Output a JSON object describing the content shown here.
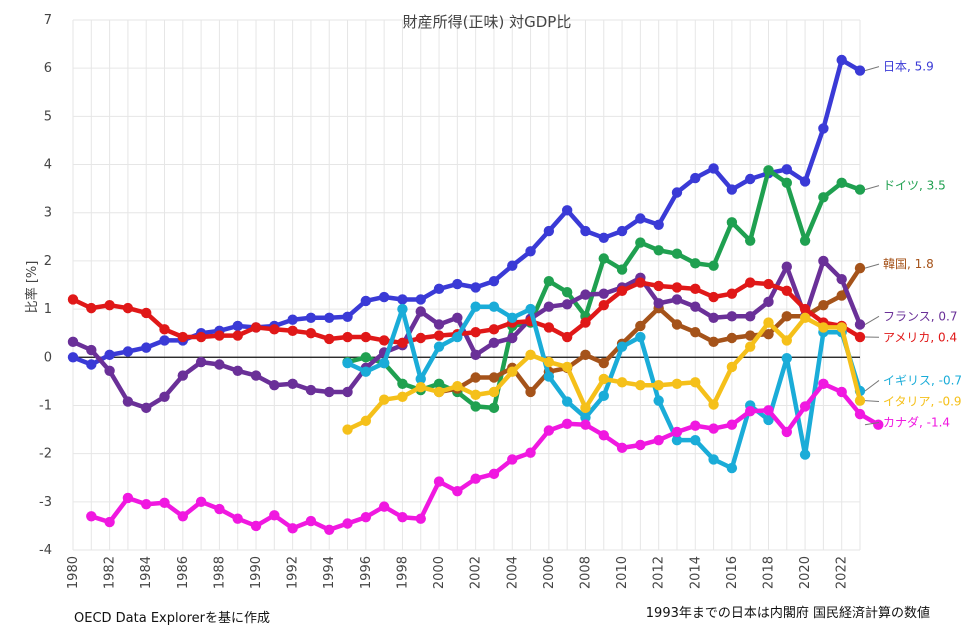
{
  "chart_data": {
    "type": "line",
    "title": "財産所得(正味) 対GDP比",
    "ylabel": "比率 [%]",
    "xlabel": "",
    "ylim": [
      -4,
      7
    ],
    "yticks": [
      -4,
      -3,
      -2,
      -1,
      0,
      1,
      2,
      3,
      4,
      5,
      6,
      7
    ],
    "xlim": [
      1980,
      2023
    ],
    "xticks": [
      1980,
      1982,
      1984,
      1986,
      1988,
      1990,
      1992,
      1994,
      1996,
      1998,
      2000,
      2002,
      2004,
      2006,
      2008,
      2010,
      2012,
      2014,
      2016,
      2018,
      2020,
      2022
    ],
    "grid": true,
    "source_note": "OECD Data Explorerを基に作成",
    "footnote": "1993年までの日本は内閣府 国民経済計算の数値",
    "series": [
      {
        "name": "日本",
        "legend_label": "日本, 5.9",
        "color": "#3a3ad6",
        "start": 1980,
        "values": [
          0.0,
          -0.15,
          0.05,
          0.12,
          0.2,
          0.35,
          0.35,
          0.5,
          0.55,
          0.65,
          0.62,
          0.65,
          0.78,
          0.82,
          0.82,
          0.84,
          1.17,
          1.25,
          1.2,
          1.2,
          1.42,
          1.52,
          1.45,
          1.58,
          1.9,
          2.2,
          2.62,
          3.05,
          2.62,
          2.48,
          2.62,
          2.88,
          2.75,
          3.42,
          3.72,
          3.92,
          3.48,
          3.7,
          3.82,
          3.9,
          3.65,
          4.75,
          6.17,
          5.95
        ]
      },
      {
        "name": "ドイツ",
        "legend_label": "ドイツ, 3.5",
        "color": "#1fa050",
        "start": 1995,
        "values": [
          -0.1,
          0.0,
          -0.12,
          -0.55,
          -0.68,
          -0.55,
          -0.72,
          -1.02,
          -1.05,
          0.65,
          0.72,
          1.58,
          1.35,
          0.85,
          2.05,
          1.82,
          2.38,
          2.22,
          2.15,
          1.95,
          1.9,
          2.8,
          2.42,
          3.88,
          3.62,
          2.42,
          3.32,
          3.62,
          3.48
        ]
      },
      {
        "name": "韓国",
        "legend_label": "韓国, 1.8",
        "color": "#a5531a",
        "start": 2000,
        "values": [
          -0.72,
          -0.65,
          -0.42,
          -0.42,
          -0.22,
          -0.72,
          -0.3,
          -0.22,
          0.05,
          -0.12,
          0.28,
          0.65,
          1.02,
          0.68,
          0.52,
          0.32,
          0.4,
          0.45,
          0.48,
          0.85,
          0.85,
          1.08,
          1.28,
          1.85
        ]
      },
      {
        "name": "フランス",
        "legend_label": "フランス, 0.7",
        "color": "#6a3098",
        "start": 1980,
        "values": [
          0.32,
          0.15,
          -0.28,
          -0.92,
          -1.05,
          -0.82,
          -0.38,
          -0.1,
          -0.15,
          -0.28,
          -0.38,
          -0.58,
          -0.55,
          -0.68,
          -0.72,
          -0.72,
          -0.22,
          0.1,
          0.25,
          0.95,
          0.68,
          0.82,
          0.05,
          0.3,
          0.4,
          0.8,
          1.05,
          1.1,
          1.3,
          1.32,
          1.45,
          1.65,
          1.12,
          1.2,
          1.05,
          0.82,
          0.85,
          0.85,
          1.15,
          1.88,
          0.85,
          2.0,
          1.62,
          0.68
        ]
      },
      {
        "name": "アメリカ",
        "legend_label": "アメリカ, 0.4",
        "color": "#e01818",
        "start": 1980,
        "values": [
          1.2,
          1.02,
          1.08,
          1.02,
          0.92,
          0.58,
          0.42,
          0.42,
          0.45,
          0.45,
          0.62,
          0.58,
          0.55,
          0.5,
          0.38,
          0.42,
          0.42,
          0.35,
          0.3,
          0.4,
          0.45,
          0.48,
          0.52,
          0.58,
          0.72,
          0.75,
          0.62,
          0.42,
          0.72,
          1.08,
          1.38,
          1.55,
          1.48,
          1.45,
          1.42,
          1.25,
          1.32,
          1.55,
          1.52,
          1.38,
          1.0,
          0.72,
          0.65,
          0.42
        ]
      },
      {
        "name": "イギリス",
        "legend_label": "イギリス, -0.7",
        "color": "#1aacd8",
        "start": 1995,
        "values": [
          -0.12,
          -0.3,
          -0.12,
          1.0,
          -0.45,
          0.22,
          0.42,
          1.05,
          1.05,
          0.82,
          1.0,
          -0.4,
          -0.92,
          -1.25,
          -0.8,
          0.22,
          0.42,
          -0.9,
          -1.72,
          -1.72,
          -2.12,
          -2.3,
          -1.0,
          -1.3,
          -0.02,
          -2.02,
          0.52,
          0.52,
          -0.7
        ]
      },
      {
        "name": "イタリア",
        "legend_label": "イタリア, -0.9",
        "color": "#f5c01a",
        "start": 1995,
        "values": [
          -1.5,
          -1.32,
          -0.88,
          -0.82,
          -0.62,
          -0.72,
          -0.6,
          -0.78,
          -0.72,
          -0.3,
          0.05,
          -0.1,
          -0.2,
          -1.05,
          -0.45,
          -0.52,
          -0.58,
          -0.58,
          -0.55,
          -0.52,
          -0.98,
          -0.2,
          0.22,
          0.72,
          0.35,
          0.82,
          0.62,
          0.62,
          -0.9
        ]
      },
      {
        "name": "カナダ",
        "legend_label": "カナダ, -1.4",
        "color": "#f018e0",
        "start": 1981,
        "values": [
          -3.3,
          -3.42,
          -2.92,
          -3.05,
          -3.02,
          -3.3,
          -3.0,
          -3.15,
          -3.35,
          -3.5,
          -3.28,
          -3.55,
          -3.4,
          -3.58,
          -3.45,
          -3.32,
          -3.1,
          -3.32,
          -3.35,
          -2.58,
          -2.78,
          -2.52,
          -2.42,
          -2.12,
          -1.98,
          -1.52,
          -1.38,
          -1.4,
          -1.62,
          -1.88,
          -1.82,
          -1.72,
          -1.55,
          -1.42,
          -1.48,
          -1.4,
          -1.12,
          -1.1,
          -1.55,
          -1.02,
          -0.55,
          -0.72,
          -1.18,
          -1.4
        ]
      }
    ]
  }
}
